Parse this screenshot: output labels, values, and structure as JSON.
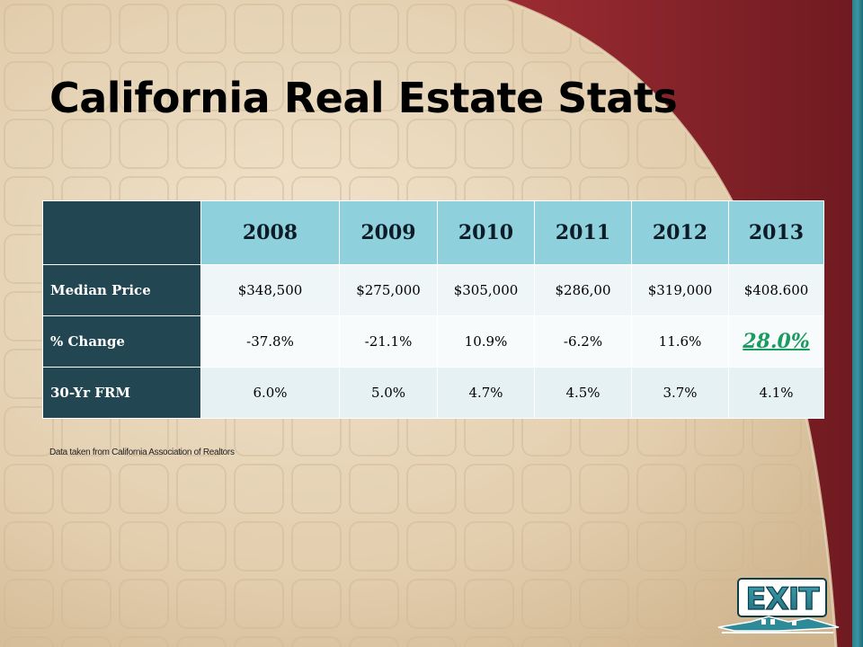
{
  "slide": {
    "title": "California Real Estate Stats",
    "source_note": "Data taken from California Association of Realtors",
    "logo_text": "EXIT",
    "colors": {
      "header_cell": "#8ed0dc",
      "row_header": "#234752",
      "highlight": "#1a9b60",
      "maroon": "#7e1f25",
      "teal_edge": "#2a7f8c"
    }
  },
  "table": {
    "years": [
      "2008",
      "2009",
      "2010",
      "2011",
      "2012",
      "2013"
    ],
    "rows": [
      {
        "label": "Median Price",
        "values": [
          "$348,500",
          "$275,000",
          "$305,000",
          "$286,00",
          "$319,000",
          "$408.600"
        ]
      },
      {
        "label": "% Change",
        "values": [
          "-37.8%",
          "-21.1%",
          "10.9%",
          "-6.2%",
          "11.6%",
          "28.0%"
        ]
      },
      {
        "label": "30-Yr FRM",
        "values": [
          "6.0%",
          "5.0%",
          "4.7%",
          "4.5%",
          "3.7%",
          "4.1%"
        ]
      }
    ]
  }
}
